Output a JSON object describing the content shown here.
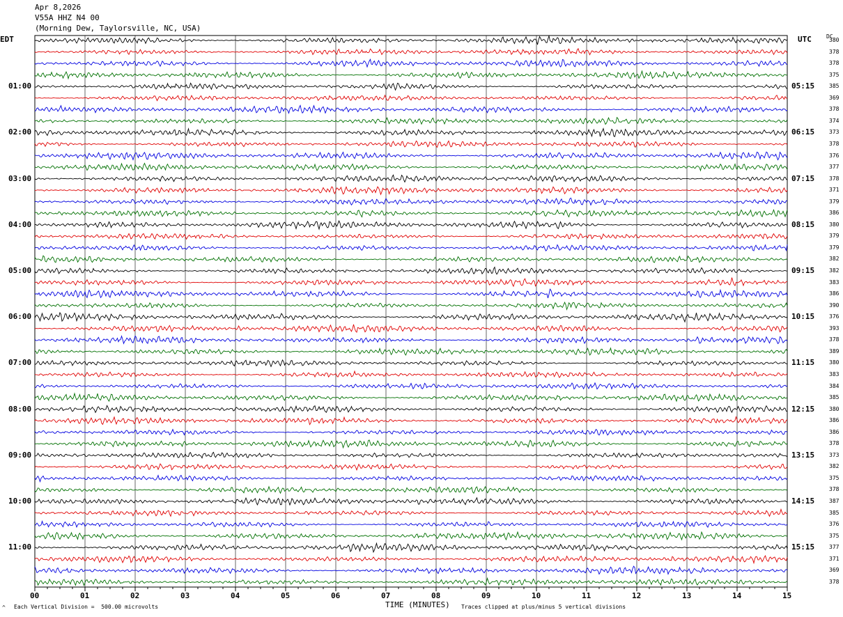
{
  "header": {
    "date": "Apr 8,2026",
    "station": "V55A HHZ N4 00",
    "location": "(Morning Dew, Taylorsville, NC, USA)"
  },
  "left_zone": "EDT",
  "right_zone": "UTC",
  "dc_header": "DC",
  "footer": {
    "scale": "Each Vertical Division =  500.00 microvolts",
    "clip": "Traces clipped at plus/minus 5 vertical divisions",
    "corner_mark": "^"
  },
  "chart_data": {
    "type": "line",
    "xlabel": "TIME (MINUTES)",
    "x_ticks": [
      "00",
      "01",
      "02",
      "03",
      "04",
      "05",
      "06",
      "07",
      "08",
      "09",
      "10",
      "11",
      "12",
      "13",
      "14",
      "15"
    ],
    "xlim": [
      0,
      15
    ],
    "trace_colors": [
      "#000000",
      "#e00000",
      "#0000e0",
      "#007000"
    ],
    "left_time_labels": [
      "01:00",
      "02:00",
      "03:00",
      "04:00",
      "05:00",
      "06:00",
      "07:00",
      "08:00",
      "09:00",
      "10:00",
      "11:00"
    ],
    "right_time_labels": [
      "05:15",
      "06:15",
      "07:15",
      "08:15",
      "09:15",
      "10:15",
      "11:15",
      "12:15",
      "13:15",
      "14:15",
      "15:15"
    ],
    "dc_offsets": [
      "380",
      "378",
      "378",
      "375",
      "385",
      "369",
      "378",
      "374",
      "373",
      "378",
      "376",
      "377",
      "378",
      "371",
      "379",
      "386",
      "380",
      "379",
      "379",
      "382",
      "382",
      "383",
      "386",
      "390",
      "376",
      "393",
      "378",
      "389",
      "380",
      "383",
      "384",
      "385",
      "380",
      "386",
      "386",
      "378",
      "373",
      "382",
      "375",
      "378",
      "387",
      "385",
      "376",
      "375",
      "377",
      "371",
      "369",
      "378"
    ]
  }
}
